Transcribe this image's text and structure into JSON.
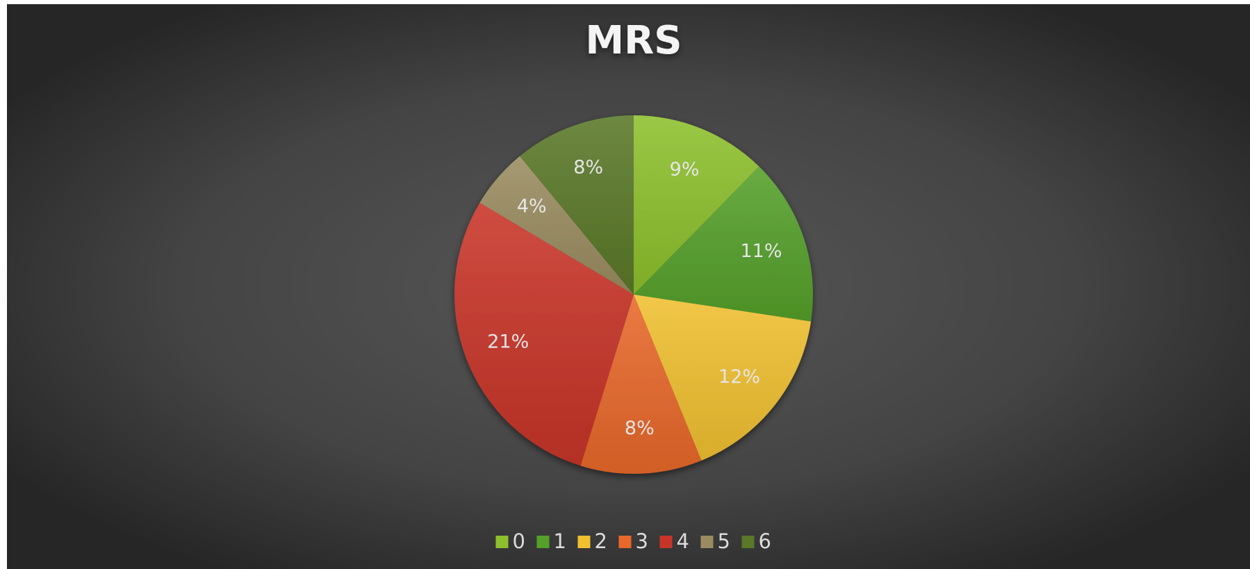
{
  "chart_data": {
    "type": "pie",
    "title": "MRS",
    "categories": [
      "0",
      "1",
      "2",
      "3",
      "4",
      "5",
      "6"
    ],
    "values": [
      9,
      11,
      12,
      8,
      21,
      4,
      8
    ],
    "value_labels": [
      "9%",
      "11%",
      "12%",
      "8%",
      "21%",
      "4%",
      "8%"
    ],
    "colors": [
      "#8dc02c",
      "#55a02a",
      "#f0c030",
      "#e8682a",
      "#c83428",
      "#9a8c60",
      "#5a7828"
    ],
    "legend": "bottom"
  }
}
